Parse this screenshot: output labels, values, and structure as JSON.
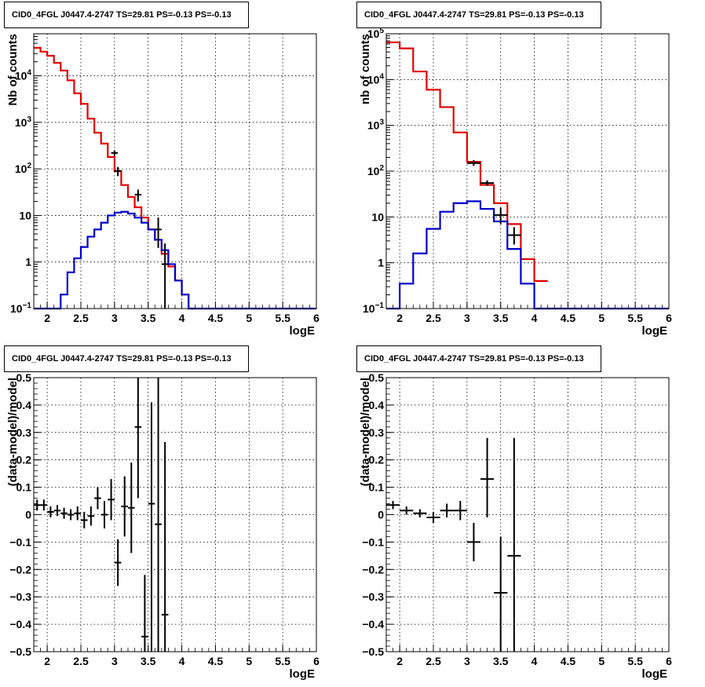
{
  "chart_data": [
    {
      "type": "line",
      "title": "CID0_4FGL J0447.4-2747 TS=29.81 PS=-0.13 PS=-0.13",
      "xlabel": "logE",
      "ylabel": "Nb of counts",
      "xlim": [
        1.8,
        6.0
      ],
      "ylim": [
        0.1,
        80000
      ],
      "yscale": "log",
      "grid": true,
      "x_ticks": [
        "2",
        "2.5",
        "3",
        "3.5",
        "4",
        "4.5",
        "5",
        "5.5",
        "6"
      ],
      "y_ticks": [
        "10^-1",
        "1",
        "10",
        "10^2",
        "10^3",
        "10^4"
      ],
      "series": [
        {
          "color": "#e00000",
          "bin_edges": [
            1.8,
            1.9,
            2.0,
            2.1,
            2.2,
            2.3,
            2.4,
            2.5,
            2.6,
            2.7,
            2.8,
            2.9,
            3.0,
            3.1,
            3.2,
            3.3,
            3.4,
            3.5,
            3.6,
            3.7,
            3.8,
            3.9,
            4.0,
            4.1,
            4.2
          ],
          "values": [
            40000,
            33000,
            27000,
            19000,
            13000,
            8000,
            4200,
            2500,
            1200,
            600,
            350,
            180,
            90,
            45,
            25,
            15,
            9,
            5,
            3,
            1.5,
            0.8,
            0.4,
            0.2,
            0.1
          ]
        },
        {
          "color": "#0000cc",
          "bin_edges": [
            1.8,
            1.9,
            2.0,
            2.1,
            2.2,
            2.3,
            2.4,
            2.5,
            2.6,
            2.7,
            2.8,
            2.9,
            3.0,
            3.1,
            3.2,
            3.3,
            3.4,
            3.5,
            3.6,
            3.7,
            3.8,
            3.9,
            4.0,
            4.1,
            4.2,
            6.0
          ],
          "values": [
            0.001,
            0.001,
            0.001,
            0.1,
            0.2,
            0.6,
            1.2,
            2.1,
            3.5,
            5,
            7,
            10,
            11.5,
            12,
            11,
            9,
            7,
            5,
            3,
            1.8,
            0.9,
            0.4,
            0.2,
            0.1,
            0.1
          ]
        }
      ],
      "points": [
        {
          "x": 3.0,
          "y": 220,
          "xerr": 0.05,
          "ylo": 190,
          "yhi": 250
        },
        {
          "x": 3.05,
          "y": 90,
          "xerr": 0.05,
          "ylo": 70,
          "yhi": 110
        },
        {
          "x": 3.35,
          "y": 28,
          "xerr": 0.05,
          "ylo": 20,
          "yhi": 36
        },
        {
          "x": 3.65,
          "y": 5,
          "xerr": 0.05,
          "ylo": 2,
          "yhi": 9
        },
        {
          "x": 3.75,
          "y": 0.9,
          "xerr": 0.05,
          "ylo": 0.1,
          "yhi": 2.5
        }
      ]
    },
    {
      "type": "line",
      "title": "CID0_4FGL J0447.4-2747 TS=29.81 PS=-0.13 PS=-0.13",
      "xlabel": "logE",
      "ylabel": "nb of counts",
      "xlim": [
        1.8,
        6.0
      ],
      "ylim": [
        0.1,
        100000
      ],
      "yscale": "log",
      "grid": true,
      "x_ticks": [
        "2",
        "2.5",
        "3",
        "3.5",
        "4",
        "4.5",
        "5",
        "5.5",
        "6"
      ],
      "y_ticks": [
        "10^-1",
        "1",
        "10",
        "10^2",
        "10^3",
        "10^4",
        "10^5"
      ],
      "series": [
        {
          "color": "#e00000",
          "bin_edges": [
            1.8,
            2.0,
            2.2,
            2.4,
            2.6,
            2.8,
            3.0,
            3.2,
            3.4,
            3.6,
            3.8,
            4.0,
            4.2
          ],
          "values": [
            65000,
            48000,
            15000,
            6000,
            2500,
            700,
            160,
            50,
            20,
            7,
            1.2,
            0.4
          ]
        },
        {
          "color": "#0000cc",
          "bin_edges": [
            1.8,
            2.0,
            2.2,
            2.4,
            2.6,
            2.8,
            3.0,
            3.2,
            3.4,
            3.6,
            3.8,
            4.0,
            6.0
          ],
          "values": [
            0.001,
            0.35,
            1.6,
            5.5,
            13,
            20,
            22,
            15,
            8,
            2,
            0.35,
            0.1
          ]
        }
      ],
      "points": [
        {
          "x": 3.1,
          "y": 150,
          "xerr": 0.1,
          "ylo": 130,
          "yhi": 175
        },
        {
          "x": 3.3,
          "y": 55,
          "xerr": 0.1,
          "ylo": 48,
          "yhi": 63
        },
        {
          "x": 3.5,
          "y": 11,
          "xerr": 0.1,
          "ylo": 7,
          "yhi": 16
        },
        {
          "x": 3.7,
          "y": 4,
          "xerr": 0.1,
          "ylo": 2.5,
          "yhi": 6
        }
      ]
    },
    {
      "type": "scatter",
      "title": "CID0_4FGL J0447.4-2747 TS=29.81 PS=-0.13 PS=-0.13",
      "xlabel": "logE",
      "ylabel": "(data-model)/model",
      "xlim": [
        1.8,
        6.0
      ],
      "ylim": [
        -0.5,
        0.5
      ],
      "grid": true,
      "x_ticks": [
        "2",
        "2.5",
        "3",
        "3.5",
        "4",
        "4.5",
        "5",
        "5.5",
        "6"
      ],
      "y_ticks": [
        "-0.5",
        "-0.4",
        "-0.3",
        "-0.2",
        "-0.1",
        "0",
        "0.1",
        "0.2",
        "0.3",
        "0.4",
        "0.5"
      ],
      "points": [
        {
          "x": 1.85,
          "y": 0.035,
          "xerr": 0.05,
          "ylo": 0.015,
          "yhi": 0.055
        },
        {
          "x": 1.95,
          "y": 0.035,
          "xerr": 0.05,
          "ylo": 0.015,
          "yhi": 0.055
        },
        {
          "x": 2.05,
          "y": 0.01,
          "xerr": 0.05,
          "ylo": -0.01,
          "yhi": 0.03
        },
        {
          "x": 2.15,
          "y": 0.015,
          "xerr": 0.05,
          "ylo": -0.005,
          "yhi": 0.035
        },
        {
          "x": 2.25,
          "y": 0.005,
          "xerr": 0.05,
          "ylo": -0.015,
          "yhi": 0.025
        },
        {
          "x": 2.35,
          "y": 0.0,
          "xerr": 0.05,
          "ylo": -0.02,
          "yhi": 0.02
        },
        {
          "x": 2.45,
          "y": 0.005,
          "xerr": 0.05,
          "ylo": -0.02,
          "yhi": 0.03
        },
        {
          "x": 2.55,
          "y": -0.02,
          "xerr": 0.05,
          "ylo": -0.05,
          "yhi": 0.01
        },
        {
          "x": 2.65,
          "y": -0.005,
          "xerr": 0.05,
          "ylo": -0.04,
          "yhi": 0.03
        },
        {
          "x": 2.75,
          "y": 0.06,
          "xerr": 0.05,
          "ylo": 0.02,
          "yhi": 0.1
        },
        {
          "x": 2.85,
          "y": 0.0,
          "xerr": 0.05,
          "ylo": -0.05,
          "yhi": 0.05
        },
        {
          "x": 2.95,
          "y": 0.055,
          "xerr": 0.05,
          "ylo": -0.02,
          "yhi": 0.13
        },
        {
          "x": 3.05,
          "y": -0.175,
          "xerr": 0.05,
          "ylo": -0.26,
          "yhi": -0.09
        },
        {
          "x": 3.15,
          "y": 0.03,
          "xerr": 0.05,
          "ylo": -0.08,
          "yhi": 0.14
        },
        {
          "x": 3.25,
          "y": 0.025,
          "xerr": 0.05,
          "ylo": -0.14,
          "yhi": 0.19
        },
        {
          "x": 3.35,
          "y": 0.32,
          "xerr": 0.05,
          "ylo": 0.06,
          "yhi": 0.5
        },
        {
          "x": 3.45,
          "y": -0.445,
          "xerr": 0.05,
          "ylo": -0.5,
          "yhi": -0.22
        },
        {
          "x": 3.55,
          "y": 0.04,
          "xerr": 0.05,
          "ylo": -0.5,
          "yhi": 0.41
        },
        {
          "x": 3.65,
          "y": -0.035,
          "xerr": 0.05,
          "ylo": -0.5,
          "yhi": 0.5
        },
        {
          "x": 3.75,
          "y": -0.365,
          "xerr": 0.05,
          "ylo": -0.5,
          "yhi": 0.265
        }
      ]
    },
    {
      "type": "scatter",
      "title": "CID0_4FGL J0447.4-2747 TS=29.81 PS=-0.13 PS=-0.13",
      "xlabel": "logE",
      "ylabel": "(data-model)/model",
      "xlim": [
        1.8,
        6.0
      ],
      "ylim": [
        -0.5,
        0.5
      ],
      "grid": true,
      "x_ticks": [
        "2",
        "2.5",
        "3",
        "3.5",
        "4",
        "4.5",
        "5",
        "5.5",
        "6"
      ],
      "y_ticks": [
        "-0.5",
        "-0.4",
        "-0.3",
        "-0.2",
        "-0.1",
        "0",
        "0.1",
        "0.2",
        "0.3",
        "0.4",
        "0.5"
      ],
      "points": [
        {
          "x": 1.9,
          "y": 0.035,
          "xerr": 0.1,
          "ylo": 0.02,
          "yhi": 0.05
        },
        {
          "x": 2.1,
          "y": 0.015,
          "xerr": 0.1,
          "ylo": 0.0,
          "yhi": 0.03
        },
        {
          "x": 2.3,
          "y": 0.005,
          "xerr": 0.1,
          "ylo": -0.01,
          "yhi": 0.02
        },
        {
          "x": 2.5,
          "y": -0.01,
          "xerr": 0.1,
          "ylo": -0.03,
          "yhi": 0.01
        },
        {
          "x": 2.7,
          "y": 0.015,
          "xerr": 0.1,
          "ylo": -0.01,
          "yhi": 0.04
        },
        {
          "x": 2.9,
          "y": 0.015,
          "xerr": 0.1,
          "ylo": -0.02,
          "yhi": 0.05
        },
        {
          "x": 3.1,
          "y": -0.1,
          "xerr": 0.1,
          "ylo": -0.17,
          "yhi": -0.03
        },
        {
          "x": 3.3,
          "y": 0.13,
          "xerr": 0.1,
          "ylo": -0.01,
          "yhi": 0.28
        },
        {
          "x": 3.5,
          "y": -0.285,
          "xerr": 0.1,
          "ylo": -0.5,
          "yhi": -0.08
        },
        {
          "x": 3.7,
          "y": -0.15,
          "xerr": 0.1,
          "ylo": -0.5,
          "yhi": 0.28
        }
      ]
    }
  ]
}
